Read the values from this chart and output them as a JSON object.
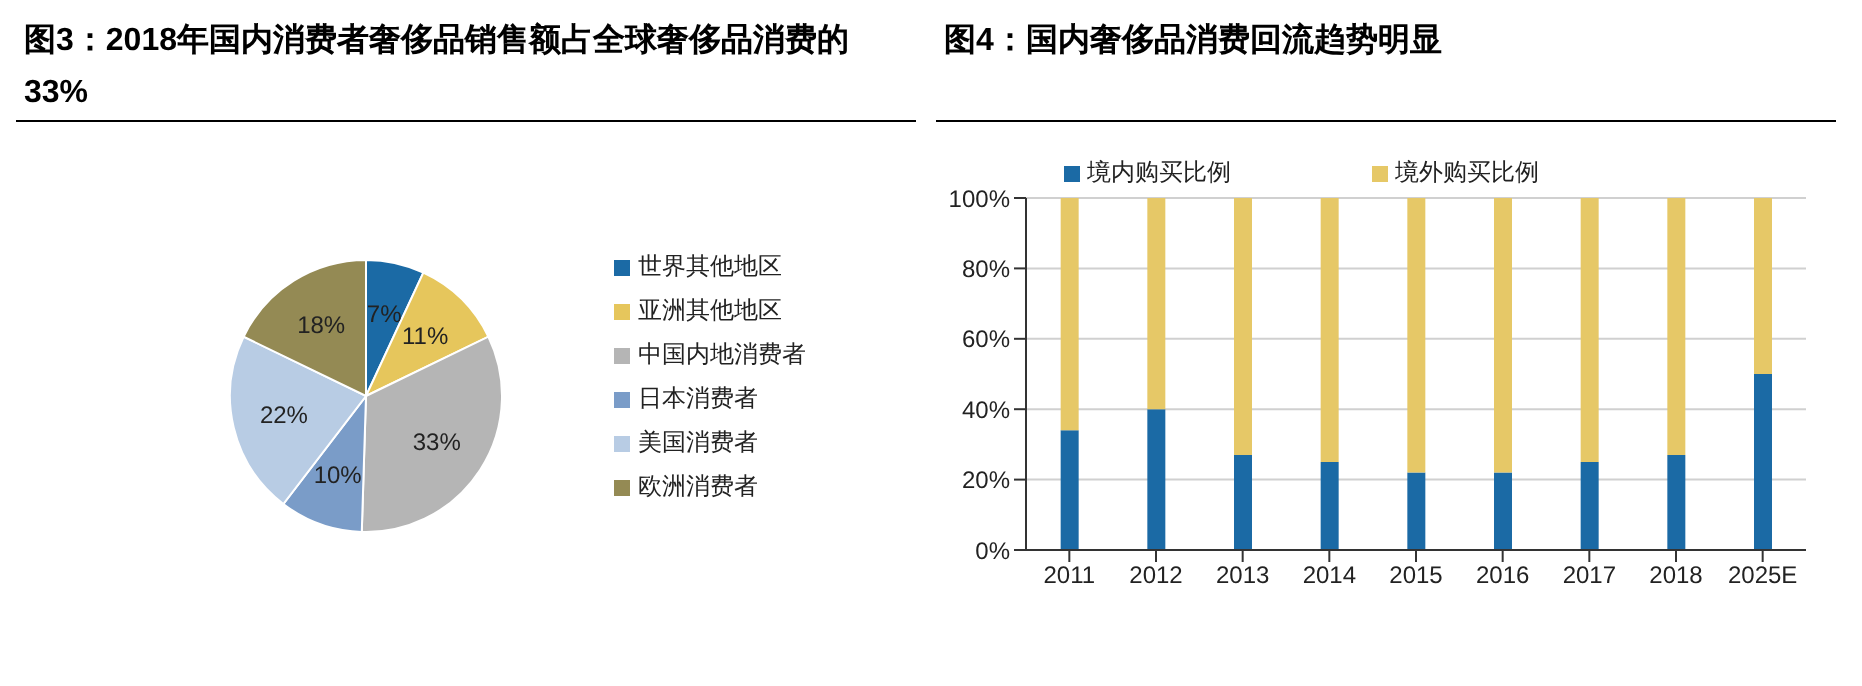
{
  "chart_data": [
    {
      "type": "pie",
      "title": "图3：2018年国内消费者奢侈品销售额占全球奢侈品消费的33%",
      "categories": [
        "世界其他地区",
        "亚洲其他地区",
        "中国内地消费者",
        "日本消费者",
        "美国消费者",
        "欧洲消费者"
      ],
      "values": [
        7,
        11,
        33,
        10,
        22,
        18
      ],
      "value_labels": [
        "7%",
        "11%",
        "33%",
        "10%",
        "22%",
        "18%"
      ],
      "colors": [
        "#1b6aa5",
        "#e6c65c",
        "#b5b5b5",
        "#7a9cc8",
        "#b8cce4",
        "#948a54"
      ],
      "legend": "right"
    },
    {
      "type": "bar",
      "title": "图4：国内奢侈品消费回流趋势明显",
      "categories": [
        "2011",
        "2012",
        "2013",
        "2014",
        "2015",
        "2016",
        "2017",
        "2018",
        "2025E"
      ],
      "stacked": true,
      "series": [
        {
          "name": "境内购买比例",
          "color": "#1b6aa5",
          "values": [
            34,
            40,
            27,
            25,
            22,
            22,
            25,
            27,
            50
          ]
        },
        {
          "name": "境外购买比例",
          "color": "#e6c867",
          "values": [
            66,
            60,
            73,
            75,
            78,
            78,
            75,
            73,
            50
          ]
        }
      ],
      "ylim": [
        0,
        100
      ],
      "yticks": [
        {
          "value": 0,
          "label": "0%"
        },
        {
          "value": 20,
          "label": "20%"
        },
        {
          "value": 40,
          "label": "40%"
        },
        {
          "value": 60,
          "label": "60%"
        },
        {
          "value": 80,
          "label": "80%"
        },
        {
          "value": 100,
          "label": "100%"
        }
      ],
      "grid": "y",
      "legend": "top"
    }
  ]
}
